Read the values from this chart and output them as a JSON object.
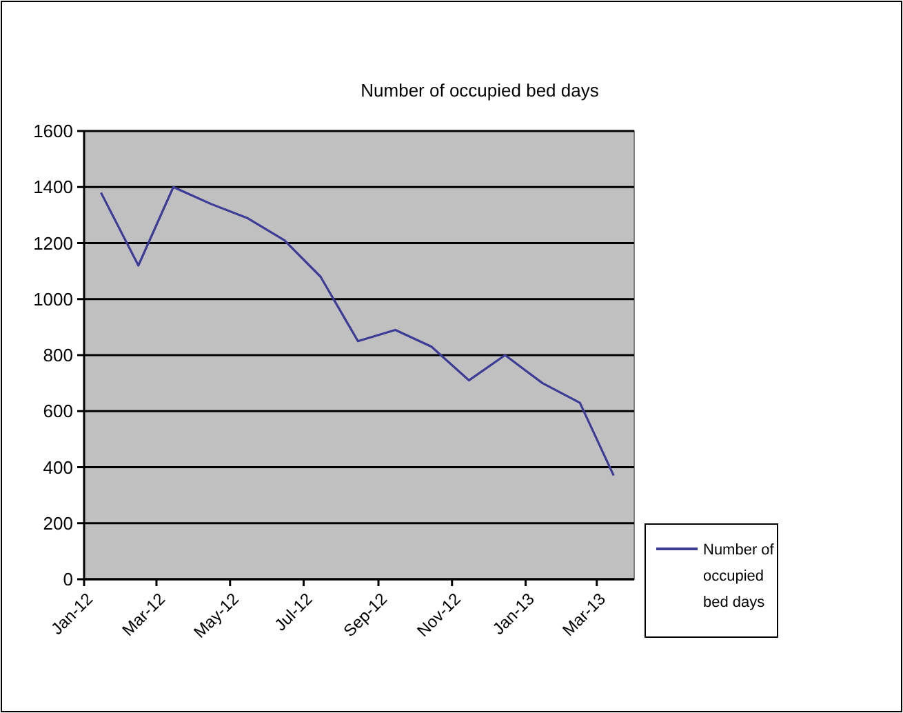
{
  "chart_data": {
    "type": "line",
    "title": "Number of occupied bed days",
    "x": [
      "2012-01-15",
      "2012-02-15",
      "2012-03-15",
      "2012-04-15",
      "2012-05-15",
      "2012-06-15",
      "2012-07-15",
      "2012-08-15",
      "2012-09-15",
      "2012-10-15",
      "2012-11-15",
      "2012-12-15",
      "2013-01-15",
      "2013-02-15",
      "2013-03-15"
    ],
    "series": [
      {
        "name": "Number of occupied bed days",
        "color": "#3c3c96",
        "values": [
          1380,
          1120,
          1400,
          1340,
          1290,
          1210,
          1080,
          850,
          890,
          830,
          710,
          800,
          700,
          630,
          370
        ]
      }
    ],
    "xlim": [
      "2012-01-01",
      "2013-04-01"
    ],
    "xticks": [
      {
        "value": "2012-01-01",
        "label": "Jan-12"
      },
      {
        "value": "2012-03-01",
        "label": "Mar-12"
      },
      {
        "value": "2012-05-01",
        "label": "May-12"
      },
      {
        "value": "2012-07-01",
        "label": "Jul-12"
      },
      {
        "value": "2012-09-01",
        "label": "Sep-12"
      },
      {
        "value": "2012-11-01",
        "label": "Nov-12"
      },
      {
        "value": "2013-01-01",
        "label": "Jan-13"
      },
      {
        "value": "2013-03-01",
        "label": "Mar-13"
      }
    ],
    "ylim": [
      0,
      1600
    ],
    "yticks": [
      0,
      200,
      400,
      600,
      800,
      1000,
      1200,
      1400,
      1600
    ],
    "grid": "y",
    "legend": "right",
    "marker": "none",
    "line_style": "solid"
  }
}
